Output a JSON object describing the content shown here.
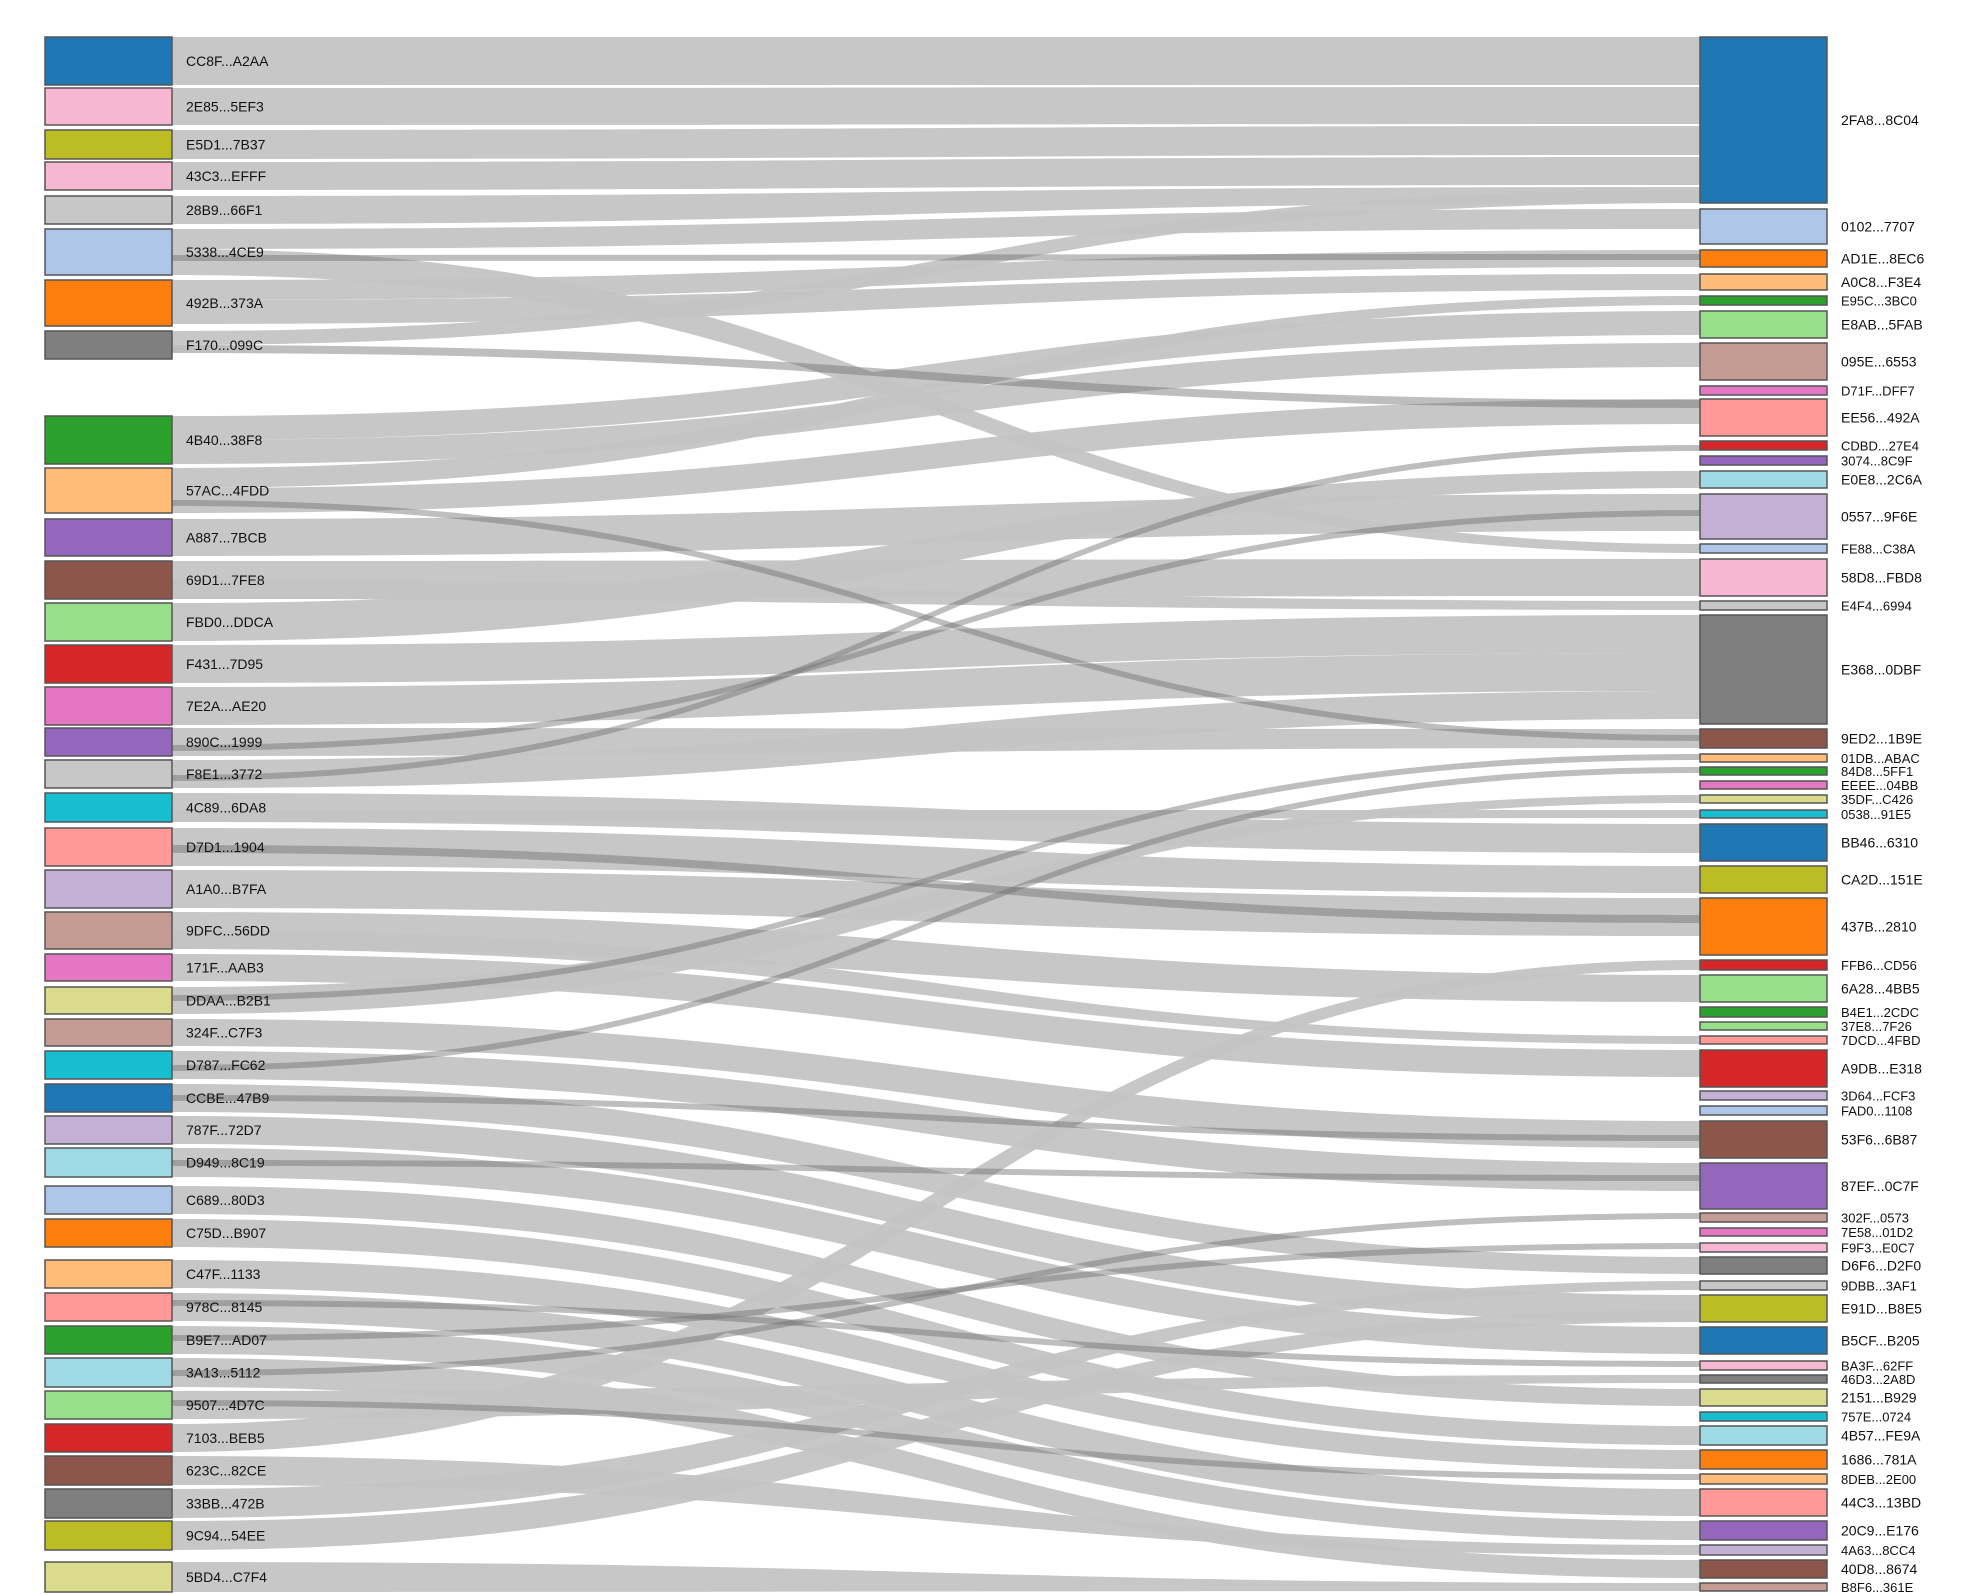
{
  "colors": {
    "link": "#c4c4c4",
    "link_emphasis": "#6e6e6e",
    "node_stroke": "#555555",
    "text": "#111111"
  },
  "left_nodes": [
    {
      "label": "CC8F...A2AA",
      "color": "#1f77b4"
    },
    {
      "label": "2E85...5EF3",
      "color": "#f7b6d2"
    },
    {
      "label": "E5D1...7B37",
      "color": "#bcbd22"
    },
    {
      "label": "43C3...EFFF",
      "color": "#f7b6d2"
    },
    {
      "label": "28B9...66F1",
      "color": "#c7c7c7"
    },
    {
      "label": "5338...4CE9",
      "color": "#aec7e8"
    },
    {
      "label": "492B...373A",
      "color": "#ff7f0e"
    },
    {
      "label": "F170...099C",
      "color": "#7f7f7f"
    },
    {
      "label": "4B40...38F8",
      "color": "#2ca02c"
    },
    {
      "label": "57AC...4FDD",
      "color": "#ffbb78"
    },
    {
      "label": "A887...7BCB",
      "color": "#9467bd"
    },
    {
      "label": "69D1...7FE8",
      "color": "#8c564b"
    },
    {
      "label": "FBD0...DDCA",
      "color": "#98df8a"
    },
    {
      "label": "F431...7D95",
      "color": "#d62728"
    },
    {
      "label": "7E2A...AE20",
      "color": "#e377c2"
    },
    {
      "label": "890C...1999",
      "color": "#9467bd"
    },
    {
      "label": "F8E1...3772",
      "color": "#c7c7c7"
    },
    {
      "label": "4C89...6DA8",
      "color": "#17becf"
    },
    {
      "label": "D7D1...1904",
      "color": "#ff9896"
    },
    {
      "label": "A1A0...B7FA",
      "color": "#c5b0d5"
    },
    {
      "label": "9DFC...56DD",
      "color": "#c49c94"
    },
    {
      "label": "171F...AAB3",
      "color": "#e377c2"
    },
    {
      "label": "DDAA...B2B1",
      "color": "#dbdb8d"
    },
    {
      "label": "324F...C7F3",
      "color": "#c49c94"
    },
    {
      "label": "D787...FC62",
      "color": "#17becf"
    },
    {
      "label": "CCBE...47B9",
      "color": "#1f77b4"
    },
    {
      "label": "787F...72D7",
      "color": "#c5b0d5"
    },
    {
      "label": "D949...8C19",
      "color": "#9edae5"
    },
    {
      "label": "C689...80D3",
      "color": "#aec7e8"
    },
    {
      "label": "C75D...B907",
      "color": "#ff7f0e"
    },
    {
      "label": "C47F...1133",
      "color": "#ffbb78"
    },
    {
      "label": "978C...8145",
      "color": "#ff9896"
    },
    {
      "label": "B9E7...AD07",
      "color": "#2ca02c"
    },
    {
      "label": "3A13...5112",
      "color": "#9edae5"
    },
    {
      "label": "9507...4D7C",
      "color": "#98df8a"
    },
    {
      "label": "7103...BEB5",
      "color": "#d62728"
    },
    {
      "label": "623C...82CE",
      "color": "#8c564b"
    },
    {
      "label": "33BB...472B",
      "color": "#7f7f7f"
    },
    {
      "label": "9C94...54EE",
      "color": "#bcbd22"
    },
    {
      "label": "5BD4...C7F4",
      "color": "#dbdb8d"
    }
  ],
  "right_nodes": [
    {
      "label": "2FA8...8C04",
      "color": "#1f77b4"
    },
    {
      "label": "0102...7707",
      "color": "#aec7e8"
    },
    {
      "label": "AD1E...8EC6",
      "color": "#ff7f0e"
    },
    {
      "label": "A0C8...F3E4",
      "color": "#ffbb78"
    },
    {
      "label": "E95C...3BC0",
      "color": "#2ca02c"
    },
    {
      "label": "E8AB...5FAB",
      "color": "#98df8a"
    },
    {
      "label": "095E...6553",
      "color": "#c49c94"
    },
    {
      "label": "D71F...DFF7",
      "color": "#e377c2"
    },
    {
      "label": "EE56...492A",
      "color": "#ff9896"
    },
    {
      "label": "CDBD...27E4",
      "color": "#d62728"
    },
    {
      "label": "3074...8C9F",
      "color": "#9467bd"
    },
    {
      "label": "E0E8...2C6A",
      "color": "#9edae5"
    },
    {
      "label": "0557...9F6E",
      "color": "#c5b0d5"
    },
    {
      "label": "FE88...C38A",
      "color": "#aec7e8"
    },
    {
      "label": "58D8...FBD8",
      "color": "#f7b6d2"
    },
    {
      "label": "E4F4...6994",
      "color": "#c7c7c7"
    },
    {
      "label": "E368...0DBF",
      "color": "#7f7f7f"
    },
    {
      "label": "9ED2...1B9E",
      "color": "#8c564b"
    },
    {
      "label": "01DB...ABAC",
      "color": "#ffbb78"
    },
    {
      "label": "84D8...5FF1",
      "color": "#2ca02c"
    },
    {
      "label": "EEEE...04BB",
      "color": "#e377c2"
    },
    {
      "label": "35DF...C426",
      "color": "#dbdb8d"
    },
    {
      "label": "0538...91E5",
      "color": "#17becf"
    },
    {
      "label": "BB46...6310",
      "color": "#1f77b4"
    },
    {
      "label": "CA2D...151E",
      "color": "#bcbd22"
    },
    {
      "label": "437B...2810",
      "color": "#ff7f0e"
    },
    {
      "label": "FFB6...CD56",
      "color": "#d62728"
    },
    {
      "label": "6A28...4BB5",
      "color": "#98df8a"
    },
    {
      "label": "B4E1...2CDC",
      "color": "#2ca02c"
    },
    {
      "label": "37E8...7F26",
      "color": "#98df8a"
    },
    {
      "label": "7DCD...4FBD",
      "color": "#ff9896"
    },
    {
      "label": "A9DB...E318",
      "color": "#d62728"
    },
    {
      "label": "3D64...FCF3",
      "color": "#c5b0d5"
    },
    {
      "label": "FAD0...1108",
      "color": "#aec7e8"
    },
    {
      "label": "53F6...6B87",
      "color": "#8c564b"
    },
    {
      "label": "87EF...0C7F",
      "color": "#9467bd"
    },
    {
      "label": "302F...0573",
      "color": "#c49c94"
    },
    {
      "label": "7E58...01D2",
      "color": "#e377c2"
    },
    {
      "label": "F9F3...E0C7",
      "color": "#f7b6d2"
    },
    {
      "label": "D6F6...D2F0",
      "color": "#7f7f7f"
    },
    {
      "label": "9DBB...3AF1",
      "color": "#c7c7c7"
    },
    {
      "label": "E91D...B8E5",
      "color": "#bcbd22"
    },
    {
      "label": "B5CF...B205",
      "color": "#1f77b4"
    },
    {
      "label": "BA3F...62FF",
      "color": "#f7b6d2"
    },
    {
      "label": "46D3...2A8D",
      "color": "#7f7f7f"
    },
    {
      "label": "2151...B929",
      "color": "#dbdb8d"
    },
    {
      "label": "757E...0724",
      "color": "#17becf"
    },
    {
      "label": "4B57...FE9A",
      "color": "#9edae5"
    },
    {
      "label": "1686...781A",
      "color": "#ff7f0e"
    },
    {
      "label": "8DEB...2E00",
      "color": "#ffbb78"
    },
    {
      "label": "44C3...13BD",
      "color": "#ff9896"
    },
    {
      "label": "20C9...E176",
      "color": "#9467bd"
    },
    {
      "label": "4A63...8CC4",
      "color": "#c5b0d5"
    },
    {
      "label": "40D8...8674",
      "color": "#8c564b"
    },
    {
      "label": "B8F6...361E",
      "color": "#c49c94"
    }
  ]
}
